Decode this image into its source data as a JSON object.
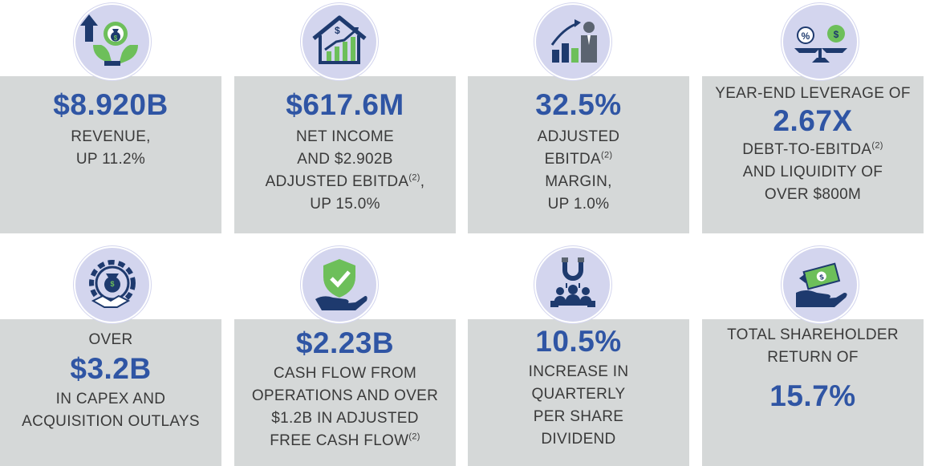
{
  "colors": {
    "navy": "#2f55a4",
    "accent_green": "#6dbf5a",
    "card_bg": "#d5d8d8",
    "icon_bg": "#d3d5ee",
    "icon_dark": "#1e3a6e"
  },
  "cards": [
    {
      "icon": "money-growth-hands-icon",
      "big": "$8.920B",
      "lines": [
        "REVENUE,",
        "UP 11.2%"
      ]
    },
    {
      "icon": "house-growth-chart-icon",
      "big": "$617.6M",
      "lines": [
        "NET INCOME",
        "AND $2.902B",
        "ADJUSTED EBITDA",
        "UP 15.0%"
      ],
      "sup": "(2)",
      "sup_suffix": ","
    },
    {
      "icon": "businessman-growth-chart-icon",
      "big": "32.5%",
      "lines": [
        "ADJUSTED",
        "EBITDA",
        "MARGIN,",
        "UP 1.0%"
      ],
      "sup": "(2)"
    },
    {
      "icon": "balance-scale-money-icon",
      "pre": "YEAR-END LEVERAGE OF",
      "big": "2.67X",
      "lines": [
        "DEBT-TO-EBITDA",
        "AND LIQUIDITY OF",
        "OVER $800M"
      ],
      "sup": "(2)"
    },
    {
      "icon": "gear-handshake-money-icon",
      "pre": "OVER",
      "big": "$3.2B",
      "lines": [
        "IN CAPEX AND",
        "ACQUISITION OUTLAYS"
      ]
    },
    {
      "icon": "shield-hand-check-icon",
      "big": "$2.23B",
      "lines": [
        "CASH FLOW FROM",
        "OPERATIONS AND OVER",
        "$1.2B IN ADJUSTED",
        "FREE CASH FLOW"
      ],
      "sup": "(2)"
    },
    {
      "icon": "magnet-people-icon",
      "big": "10.5%",
      "lines": [
        "INCREASE IN",
        "QUARTERLY",
        "PER SHARE",
        "DIVIDEND"
      ]
    },
    {
      "icon": "hand-cash-return-icon",
      "pre": "TOTAL SHAREHOLDER",
      "pre2": "RETURN OF",
      "big": "15.7%"
    }
  ]
}
